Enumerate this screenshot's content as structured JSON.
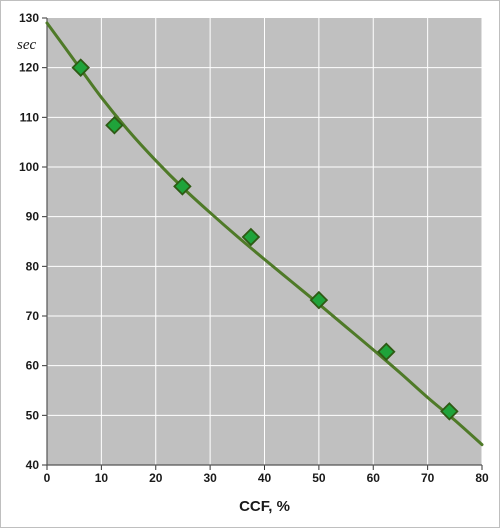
{
  "chart_data": {
    "type": "scatter",
    "xlabel": "CCF, %",
    "ylabel": "sec",
    "xlim": [
      0,
      80
    ],
    "ylim": [
      40,
      130
    ],
    "xticks": [
      0,
      10,
      20,
      30,
      40,
      50,
      60,
      70,
      80
    ],
    "yticks": [
      40,
      50,
      60,
      70,
      80,
      90,
      100,
      110,
      120,
      130
    ],
    "grid": true,
    "legend": "none",
    "colors": {
      "plot_background": "#c0c0c0",
      "gridline": "#ffffff",
      "trend_line": "#4f7a28",
      "marker_fill": "#1fa33a",
      "marker_edge": "#2e5a14"
    },
    "series": [
      {
        "marker": "diamond",
        "x": [
          6.2,
          12.4,
          24.9,
          37.5,
          50.0,
          62.4,
          74.0
        ],
        "y": [
          120.0,
          108.4,
          96.1,
          85.9,
          73.2,
          62.8,
          50.8
        ]
      }
    ],
    "trend_line": {
      "x": [
        0,
        5,
        10,
        15,
        20,
        25,
        30,
        35,
        40,
        45,
        50,
        55,
        60,
        65,
        70,
        75,
        80
      ],
      "y": [
        129.0,
        121.5,
        114.0,
        107.3,
        101.3,
        95.8,
        90.8,
        86.0,
        81.4,
        76.9,
        72.4,
        67.8,
        63.2,
        58.5,
        53.6,
        49.0,
        44.1
      ]
    }
  }
}
